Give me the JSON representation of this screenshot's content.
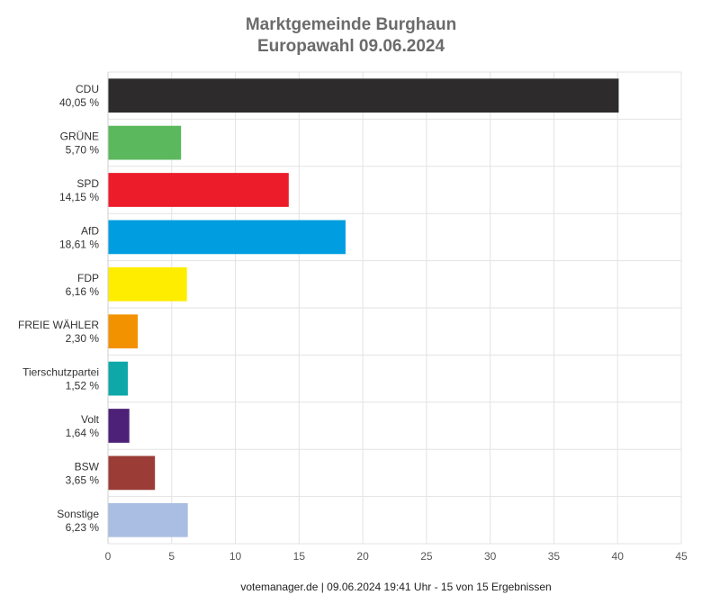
{
  "title": "Marktgemeinde Burghaun",
  "subtitle": "Europawahl 09.06.2024",
  "footer": "votemanager.de | 09.06.2024 19:41 Uhr - 15 von 15 Ergebnissen",
  "chart_data": {
    "type": "bar",
    "orientation": "horizontal",
    "categories": [
      "CDU",
      "GRÜNE",
      "SPD",
      "AfD",
      "FDP",
      "FREIE WÄHLER",
      "Tierschutzpartei",
      "Volt",
      "BSW",
      "Sonstige"
    ],
    "value_labels": [
      "40,05 %",
      "5,70 %",
      "14,15 %",
      "18,61 %",
      "6,16 %",
      "2,30 %",
      "1,52 %",
      "1,64 %",
      "3,65 %",
      "6,23 %"
    ],
    "values": [
      40.05,
      5.7,
      14.15,
      18.61,
      6.16,
      2.3,
      1.52,
      1.64,
      3.65,
      6.23
    ],
    "colors": [
      "#2d2b2c",
      "#5cb85c",
      "#ec1c2a",
      "#009ee0",
      "#ffed00",
      "#f39200",
      "#0fa8a8",
      "#4d2177",
      "#9b3c37",
      "#aabde3"
    ],
    "xlim": [
      0,
      45
    ],
    "xticks": [
      0,
      5,
      10,
      15,
      20,
      25,
      30,
      35,
      40,
      45
    ],
    "grid": true
  }
}
